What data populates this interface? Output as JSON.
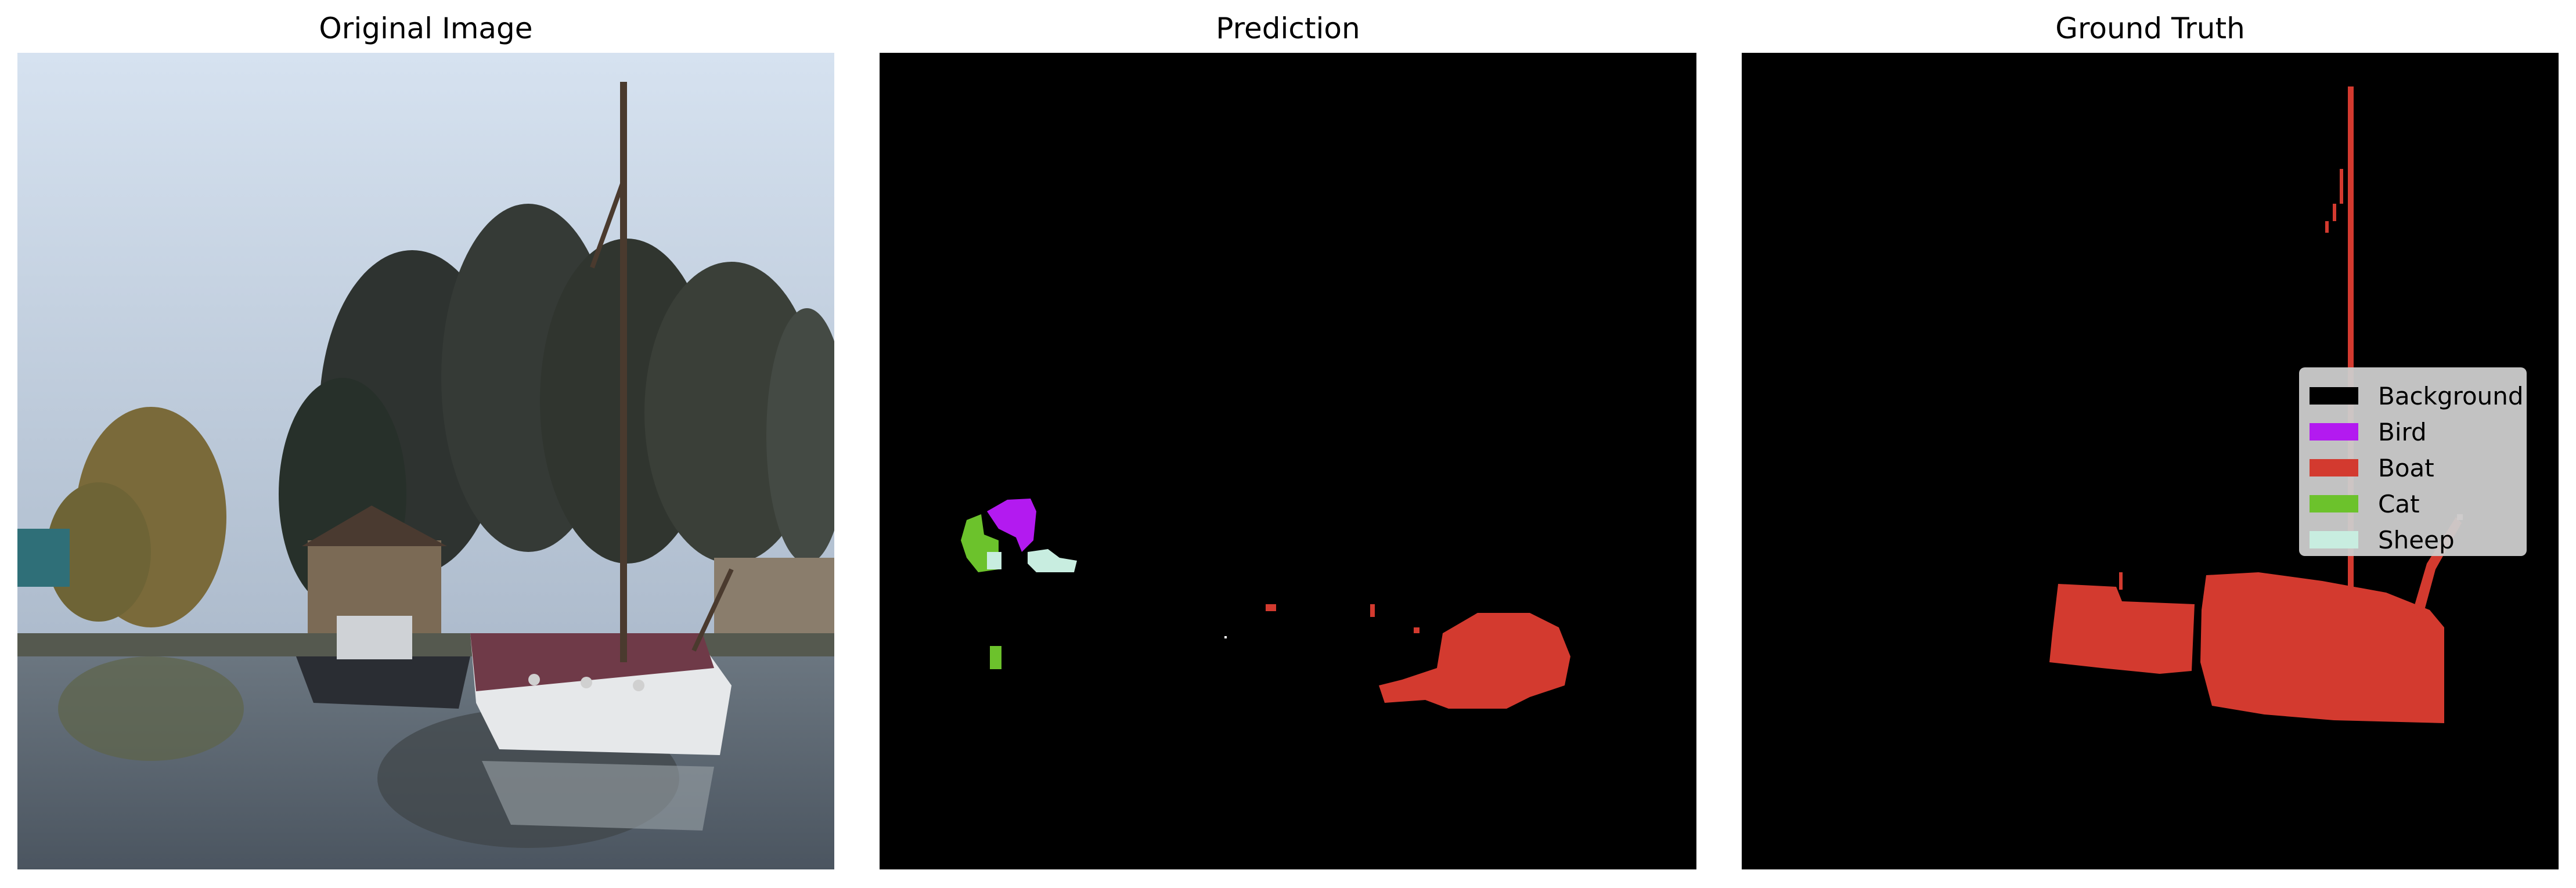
{
  "titles": {
    "original": "Original Image",
    "prediction": "Prediction",
    "ground_truth": "Ground Truth"
  },
  "legend": [
    {
      "label": "Background",
      "color": "#000000"
    },
    {
      "label": "Bird",
      "color": "#b31af0"
    },
    {
      "label": "Boat",
      "color": "#d33a2f"
    },
    {
      "label": "Cat",
      "color": "#6cc22c"
    },
    {
      "label": "Sheep",
      "color": "#c8ede0"
    }
  ]
}
